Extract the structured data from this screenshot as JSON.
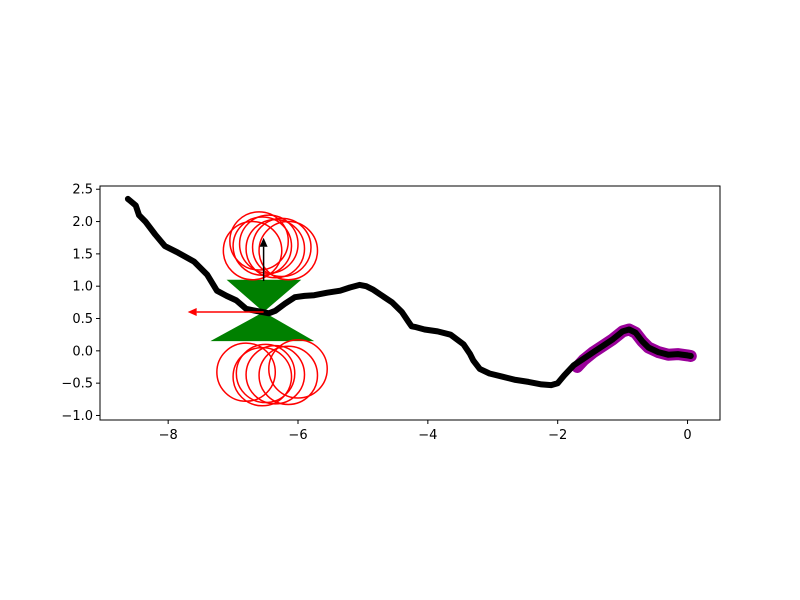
{
  "chart_data": {
    "type": "scatter",
    "title": "",
    "xlabel": "",
    "ylabel": "",
    "xlim": [
      -9.05,
      0.5
    ],
    "ylim": [
      -1.07,
      2.55
    ],
    "xticks": [
      -8,
      -6,
      -4,
      -2,
      0
    ],
    "xtick_labels": [
      "−8",
      "−6",
      "−4",
      "−2",
      "0"
    ],
    "yticks": [
      -1.0,
      -0.5,
      0.0,
      0.5,
      1.0,
      1.5,
      2.0,
      2.5
    ],
    "ytick_labels": [
      "−1.0",
      "−0.5",
      "0.0",
      "0.5",
      "1.0",
      "1.5",
      "2.0",
      "2.5"
    ],
    "grid": false,
    "colors": {
      "trajectory": "#000000",
      "highlight": "#990099",
      "circles": "#ff0000",
      "cones": "#008000",
      "arrow_up": "#000000",
      "arrow_left": "#ff0000"
    },
    "series": [
      {
        "kind": "trajectory",
        "x": [
          -8.62,
          -8.5,
          -8.45,
          -8.35,
          -8.2,
          -8.05,
          -7.85,
          -7.6,
          -7.4,
          -7.25,
          -7.1,
          -6.95,
          -6.8,
          -6.65,
          -6.55,
          -6.45,
          -6.35,
          -6.2,
          -6.05,
          -5.9,
          -5.75,
          -5.55,
          -5.35,
          -5.2,
          -5.05,
          -4.95,
          -4.85,
          -4.7,
          -4.55,
          -4.4,
          -4.3,
          -4.25,
          -4.2,
          -4.05,
          -3.85,
          -3.65,
          -3.45,
          -3.35,
          -3.3,
          -3.2,
          -3.05,
          -2.85,
          -2.65,
          -2.45,
          -2.25,
          -2.1,
          -2.0,
          -1.9,
          -1.75,
          -1.6,
          -1.45,
          -1.3,
          -1.15,
          -1.0,
          -0.9,
          -0.8,
          -0.7,
          -0.6,
          -0.45,
          -0.3,
          -0.15,
          0.0,
          0.05
        ],
        "y": [
          2.35,
          2.25,
          2.1,
          2.0,
          1.8,
          1.62,
          1.52,
          1.38,
          1.18,
          0.93,
          0.85,
          0.78,
          0.65,
          0.62,
          0.6,
          0.58,
          0.62,
          0.73,
          0.83,
          0.85,
          0.86,
          0.9,
          0.93,
          0.98,
          1.02,
          1.0,
          0.95,
          0.85,
          0.75,
          0.6,
          0.45,
          0.38,
          0.37,
          0.33,
          0.3,
          0.25,
          0.1,
          -0.05,
          -0.15,
          -0.28,
          -0.35,
          -0.4,
          -0.45,
          -0.48,
          -0.52,
          -0.53,
          -0.5,
          -0.38,
          -0.22,
          -0.12,
          -0.02,
          0.08,
          0.18,
          0.3,
          0.33,
          0.28,
          0.15,
          0.05,
          -0.02,
          -0.06,
          -0.05,
          -0.07,
          -0.08
        ]
      },
      {
        "kind": "highlight",
        "x": [
          -1.7,
          -1.6,
          -1.45,
          -1.3,
          -1.15,
          -1.0,
          -0.9,
          -0.8,
          -0.7,
          -0.6,
          -0.45,
          -0.3,
          -0.15,
          0.0,
          0.05
        ],
        "y": [
          -0.25,
          -0.14,
          -0.02,
          0.08,
          0.18,
          0.3,
          0.33,
          0.28,
          0.15,
          0.05,
          -0.02,
          -0.06,
          -0.05,
          -0.07,
          -0.08
        ]
      }
    ],
    "circles": [
      {
        "x": -6.45,
        "y": 1.65,
        "r": 0.45
      },
      {
        "x": -6.25,
        "y": 1.6,
        "r": 0.45
      },
      {
        "x": -6.6,
        "y": 1.7,
        "r": 0.45
      },
      {
        "x": -6.35,
        "y": 1.58,
        "r": 0.45
      },
      {
        "x": -6.55,
        "y": 1.62,
        "r": 0.45
      },
      {
        "x": -6.15,
        "y": 1.55,
        "r": 0.45
      },
      {
        "x": -6.7,
        "y": 1.55,
        "r": 0.45
      },
      {
        "x": -6.8,
        "y": -0.33,
        "r": 0.45
      },
      {
        "x": -6.35,
        "y": -0.37,
        "r": 0.45
      },
      {
        "x": -6.55,
        "y": -0.4,
        "r": 0.45
      },
      {
        "x": -6.5,
        "y": -0.35,
        "r": 0.45
      },
      {
        "x": -6.0,
        "y": -0.28,
        "r": 0.45
      },
      {
        "x": -6.15,
        "y": -0.38,
        "r": 0.45
      }
    ],
    "cones": [
      {
        "apex": [
          -6.53,
          0.6
        ],
        "base": [
          [
            -7.1,
            1.1
          ],
          [
            -5.95,
            1.1
          ]
        ]
      },
      {
        "apex": [
          -6.53,
          0.6
        ],
        "base": [
          [
            -7.35,
            0.15
          ],
          [
            -5.75,
            0.15
          ]
        ]
      }
    ],
    "arrows": [
      {
        "kind": "arrow_up",
        "from": [
          -6.53,
          1.08
        ],
        "to": [
          -6.53,
          1.75
        ]
      },
      {
        "kind": "arrow_left",
        "from": [
          -6.53,
          0.6
        ],
        "to": [
          -7.7,
          0.6
        ]
      }
    ]
  }
}
